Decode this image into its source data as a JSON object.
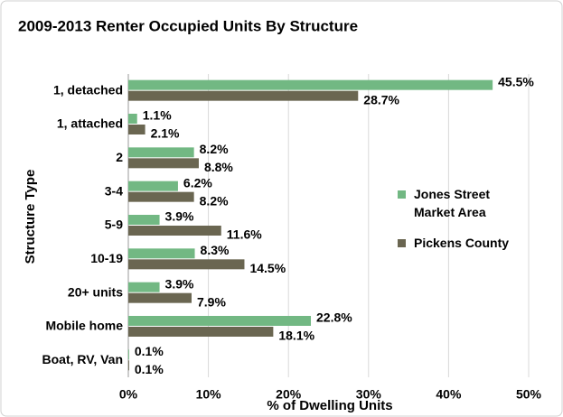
{
  "chart_data": {
    "type": "bar",
    "orientation": "horizontal",
    "title": "2009-2013 Renter Occupied Units By Structure",
    "y_label": "Structure Type",
    "x_label": "% of Dwelling Units",
    "categories": [
      "1, detached",
      "1, attached",
      "2",
      "3-4",
      "5-9",
      "10-19",
      "20+ units",
      "Mobile home",
      "Boat, RV, Van"
    ],
    "series": [
      {
        "name": "Jones Street Market Area",
        "color": "#72b883",
        "values": [
          45.5,
          1.1,
          8.2,
          6.2,
          3.9,
          8.3,
          3.9,
          22.8,
          0.1
        ],
        "value_labels": [
          "45.5%",
          "1.1%",
          "8.2%",
          "6.2%",
          "3.9%",
          "8.3%",
          "3.9%",
          "22.8%",
          "0.1%"
        ]
      },
      {
        "name": "Pickens County",
        "color": "#6a6651",
        "values": [
          28.7,
          2.1,
          8.8,
          8.2,
          11.6,
          14.5,
          7.9,
          18.1,
          0.1
        ],
        "value_labels": [
          "28.7%",
          "2.1%",
          "8.8%",
          "8.2%",
          "11.6%",
          "14.5%",
          "7.9%",
          "18.1%",
          "0.1%"
        ]
      }
    ],
    "xlim": [
      0,
      50
    ],
    "xticks": [
      {
        "value": 0,
        "label": "0%"
      },
      {
        "value": 10,
        "label": "10%"
      },
      {
        "value": 20,
        "label": "20%"
      },
      {
        "value": 30,
        "label": "30%"
      },
      {
        "value": 40,
        "label": "40%"
      },
      {
        "value": 50,
        "label": "50%"
      }
    ],
    "grid": true,
    "legend": "right"
  }
}
